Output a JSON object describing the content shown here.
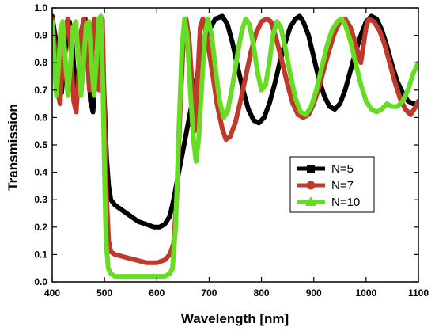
{
  "chart_data": {
    "type": "line",
    "title": "",
    "xlabel": "Wavelength [nm]",
    "ylabel": "Transmission",
    "xlim": [
      400,
      1100
    ],
    "ylim": [
      0.0,
      1.0
    ],
    "xticks": [
      400,
      500,
      600,
      700,
      800,
      900,
      1000,
      1100
    ],
    "yticks": [
      "0.0",
      "0.1",
      "0.2",
      "0.3",
      "0.4",
      "0.5",
      "0.6",
      "0.7",
      "0.8",
      "0.9",
      "1.0"
    ],
    "grid": false,
    "legend_position": "right-middle",
    "series": [
      {
        "name": "N=5",
        "color": "#000000",
        "marker": "square",
        "points": [
          [
            400,
            0.97
          ],
          [
            407,
            0.88
          ],
          [
            413,
            0.72
          ],
          [
            418,
            0.69
          ],
          [
            423,
            0.8
          ],
          [
            428,
            0.91
          ],
          [
            433,
            0.95
          ],
          [
            438,
            0.88
          ],
          [
            443,
            0.74
          ],
          [
            448,
            0.7
          ],
          [
            453,
            0.82
          ],
          [
            458,
            0.93
          ],
          [
            463,
            0.96
          ],
          [
            468,
            0.86
          ],
          [
            473,
            0.66
          ],
          [
            478,
            0.62
          ],
          [
            483,
            0.77
          ],
          [
            488,
            0.92
          ],
          [
            492,
            0.96
          ],
          [
            496,
            0.85
          ],
          [
            500,
            0.65
          ],
          [
            504,
            0.45
          ],
          [
            508,
            0.35
          ],
          [
            512,
            0.3
          ],
          [
            520,
            0.28
          ],
          [
            535,
            0.26
          ],
          [
            550,
            0.24
          ],
          [
            565,
            0.22
          ],
          [
            580,
            0.21
          ],
          [
            595,
            0.2
          ],
          [
            605,
            0.2
          ],
          [
            615,
            0.21
          ],
          [
            625,
            0.24
          ],
          [
            632,
            0.3
          ],
          [
            640,
            0.38
          ],
          [
            650,
            0.48
          ],
          [
            660,
            0.58
          ],
          [
            670,
            0.68
          ],
          [
            680,
            0.78
          ],
          [
            690,
            0.86
          ],
          [
            700,
            0.92
          ],
          [
            712,
            0.96
          ],
          [
            725,
            0.97
          ],
          [
            735,
            0.94
          ],
          [
            745,
            0.87
          ],
          [
            755,
            0.78
          ],
          [
            765,
            0.7
          ],
          [
            775,
            0.63
          ],
          [
            785,
            0.59
          ],
          [
            795,
            0.58
          ],
          [
            805,
            0.6
          ],
          [
            815,
            0.65
          ],
          [
            825,
            0.72
          ],
          [
            835,
            0.8
          ],
          [
            845,
            0.87
          ],
          [
            855,
            0.93
          ],
          [
            865,
            0.96
          ],
          [
            873,
            0.97
          ],
          [
            880,
            0.95
          ],
          [
            890,
            0.9
          ],
          [
            900,
            0.82
          ],
          [
            910,
            0.74
          ],
          [
            920,
            0.68
          ],
          [
            930,
            0.64
          ],
          [
            940,
            0.63
          ],
          [
            950,
            0.65
          ],
          [
            960,
            0.7
          ],
          [
            970,
            0.77
          ],
          [
            980,
            0.84
          ],
          [
            990,
            0.9
          ],
          [
            1000,
            0.95
          ],
          [
            1010,
            0.97
          ],
          [
            1020,
            0.96
          ],
          [
            1030,
            0.92
          ],
          [
            1040,
            0.86
          ],
          [
            1050,
            0.79
          ],
          [
            1060,
            0.73
          ],
          [
            1070,
            0.69
          ],
          [
            1080,
            0.66
          ],
          [
            1090,
            0.65
          ],
          [
            1100,
            0.65
          ]
        ]
      },
      {
        "name": "N=7",
        "color": "#C0392B",
        "marker": "circle",
        "points": [
          [
            400,
            0.96
          ],
          [
            405,
            0.85
          ],
          [
            410,
            0.7
          ],
          [
            415,
            0.65
          ],
          [
            420,
            0.8
          ],
          [
            425,
            0.93
          ],
          [
            430,
            0.96
          ],
          [
            436,
            0.84
          ],
          [
            441,
            0.66
          ],
          [
            446,
            0.62
          ],
          [
            451,
            0.77
          ],
          [
            456,
            0.92
          ],
          [
            461,
            0.96
          ],
          [
            466,
            0.86
          ],
          [
            471,
            0.7
          ],
          [
            476,
            0.85
          ],
          [
            480,
            0.96
          ],
          [
            485,
            0.85
          ],
          [
            490,
            0.7
          ],
          [
            493,
            0.9
          ],
          [
            496,
            0.96
          ],
          [
            500,
            0.6
          ],
          [
            504,
            0.3
          ],
          [
            508,
            0.15
          ],
          [
            512,
            0.11
          ],
          [
            520,
            0.1
          ],
          [
            540,
            0.09
          ],
          [
            560,
            0.08
          ],
          [
            580,
            0.07
          ],
          [
            600,
            0.07
          ],
          [
            615,
            0.08
          ],
          [
            625,
            0.1
          ],
          [
            632,
            0.14
          ],
          [
            638,
            0.3
          ],
          [
            644,
            0.6
          ],
          [
            650,
            0.85
          ],
          [
            656,
            0.96
          ],
          [
            662,
            0.88
          ],
          [
            668,
            0.7
          ],
          [
            672,
            0.55
          ],
          [
            677,
            0.7
          ],
          [
            683,
            0.93
          ],
          [
            688,
            0.96
          ],
          [
            695,
            0.9
          ],
          [
            705,
            0.78
          ],
          [
            715,
            0.65
          ],
          [
            725,
            0.56
          ],
          [
            732,
            0.52
          ],
          [
            740,
            0.53
          ],
          [
            750,
            0.58
          ],
          [
            760,
            0.66
          ],
          [
            770,
            0.75
          ],
          [
            780,
            0.84
          ],
          [
            790,
            0.91
          ],
          [
            800,
            0.95
          ],
          [
            810,
            0.96
          ],
          [
            818,
            0.95
          ],
          [
            828,
            0.89
          ],
          [
            840,
            0.8
          ],
          [
            850,
            0.72
          ],
          [
            860,
            0.65
          ],
          [
            870,
            0.61
          ],
          [
            880,
            0.6
          ],
          [
            890,
            0.61
          ],
          [
            900,
            0.65
          ],
          [
            910,
            0.71
          ],
          [
            920,
            0.78
          ],
          [
            930,
            0.85
          ],
          [
            940,
            0.91
          ],
          [
            950,
            0.95
          ],
          [
            960,
            0.96
          ],
          [
            970,
            0.93
          ],
          [
            980,
            0.87
          ],
          [
            990,
            0.8
          ],
          [
            1000,
            0.93
          ],
          [
            1005,
            0.96
          ],
          [
            1015,
            0.95
          ],
          [
            1025,
            0.92
          ],
          [
            1035,
            0.87
          ],
          [
            1045,
            0.8
          ],
          [
            1055,
            0.73
          ],
          [
            1065,
            0.67
          ],
          [
            1075,
            0.63
          ],
          [
            1085,
            0.61
          ],
          [
            1095,
            0.64
          ],
          [
            1100,
            0.66
          ]
        ]
      },
      {
        "name": "N=10",
        "color": "#66DD22",
        "marker": "triangle",
        "points": [
          [
            400,
            0.95
          ],
          [
            404,
            0.8
          ],
          [
            408,
            0.68
          ],
          [
            412,
            0.78
          ],
          [
            416,
            0.92
          ],
          [
            420,
            0.95
          ],
          [
            425,
            0.82
          ],
          [
            430,
            0.68
          ],
          [
            435,
            0.8
          ],
          [
            440,
            0.93
          ],
          [
            445,
            0.95
          ],
          [
            450,
            0.82
          ],
          [
            455,
            0.68
          ],
          [
            460,
            0.8
          ],
          [
            465,
            0.94
          ],
          [
            470,
            0.95
          ],
          [
            475,
            0.8
          ],
          [
            480,
            0.68
          ],
          [
            485,
            0.82
          ],
          [
            489,
            0.96
          ],
          [
            493,
            0.97
          ],
          [
            497,
            0.7
          ],
          [
            500,
            0.4
          ],
          [
            503,
            0.15
          ],
          [
            507,
            0.05
          ],
          [
            512,
            0.03
          ],
          [
            520,
            0.02
          ],
          [
            540,
            0.02
          ],
          [
            560,
            0.02
          ],
          [
            580,
            0.02
          ],
          [
            600,
            0.02
          ],
          [
            615,
            0.02
          ],
          [
            625,
            0.03
          ],
          [
            630,
            0.05
          ],
          [
            636,
            0.2
          ],
          [
            642,
            0.55
          ],
          [
            648,
            0.85
          ],
          [
            653,
            0.96
          ],
          [
            658,
            0.9
          ],
          [
            664,
            0.7
          ],
          [
            670,
            0.52
          ],
          [
            675,
            0.44
          ],
          [
            680,
            0.52
          ],
          [
            686,
            0.72
          ],
          [
            692,
            0.9
          ],
          [
            698,
            0.96
          ],
          [
            705,
            0.9
          ],
          [
            712,
            0.78
          ],
          [
            720,
            0.66
          ],
          [
            728,
            0.6
          ],
          [
            735,
            0.62
          ],
          [
            745,
            0.72
          ],
          [
            755,
            0.84
          ],
          [
            763,
            0.92
          ],
          [
            770,
            0.96
          ],
          [
            777,
            0.94
          ],
          [
            785,
            0.86
          ],
          [
            793,
            0.76
          ],
          [
            800,
            0.7
          ],
          [
            808,
            0.72
          ],
          [
            815,
            0.8
          ],
          [
            822,
            0.9
          ],
          [
            830,
            0.95
          ],
          [
            837,
            0.93
          ],
          [
            845,
            0.86
          ],
          [
            855,
            0.76
          ],
          [
            865,
            0.67
          ],
          [
            875,
            0.62
          ],
          [
            885,
            0.61
          ],
          [
            895,
            0.64
          ],
          [
            905,
            0.7
          ],
          [
            915,
            0.78
          ],
          [
            925,
            0.86
          ],
          [
            935,
            0.92
          ],
          [
            945,
            0.95
          ],
          [
            953,
            0.96
          ],
          [
            960,
            0.94
          ],
          [
            970,
            0.88
          ],
          [
            980,
            0.8
          ],
          [
            990,
            0.72
          ],
          [
            1000,
            0.66
          ],
          [
            1010,
            0.63
          ],
          [
            1020,
            0.62
          ],
          [
            1030,
            0.63
          ],
          [
            1040,
            0.65
          ],
          [
            1050,
            0.64
          ],
          [
            1060,
            0.64
          ],
          [
            1070,
            0.66
          ],
          [
            1080,
            0.7
          ],
          [
            1090,
            0.76
          ],
          [
            1100,
            0.8
          ]
        ]
      }
    ]
  }
}
